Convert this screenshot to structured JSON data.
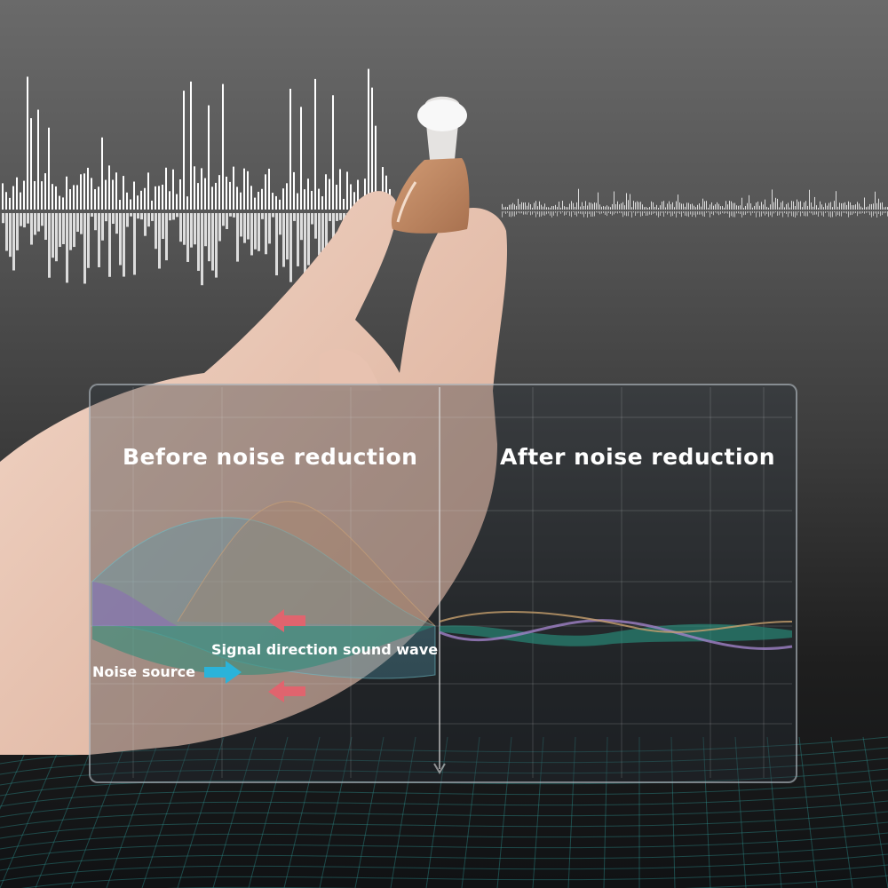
{
  "panel": {
    "before_title": "Before noise reduction",
    "after_title": "After noise reduction",
    "signal_label": "Signal direction sound wave",
    "noise_label": "Noise source"
  },
  "colors": {
    "noise_arrow": "#2bb3d9",
    "signal_arrow": "#e0646e",
    "device_shell": "#c08a64",
    "wave_teal": "#2f8f80",
    "wave_purple": "#8a6fb0",
    "wave_orange": "#b89a70"
  }
}
